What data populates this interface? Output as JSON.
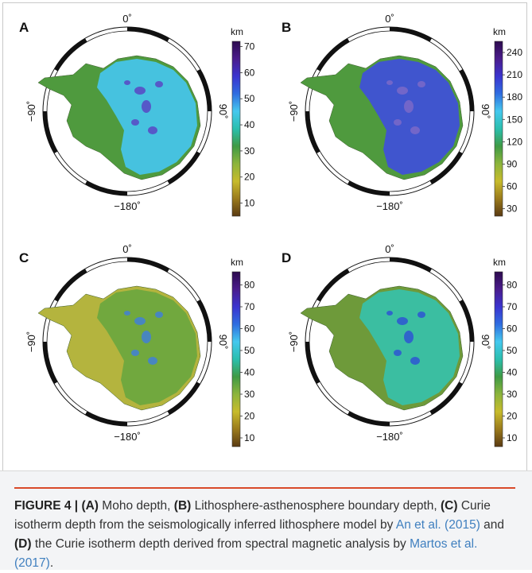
{
  "panels": [
    {
      "letter": "A",
      "unit": "km",
      "scale": {
        "min": 5,
        "max": 72,
        "ticks": [
          "70",
          "60",
          "50",
          "40",
          "30",
          "20",
          "10"
        ],
        "tick_values": [
          70,
          60,
          50,
          40,
          30,
          20,
          10
        ]
      },
      "lon_labels": {
        "top": "0˚",
        "bottom": "−180˚",
        "left": "−90˚",
        "right": "90˚"
      },
      "colors": {
        "west": "#4f9a3e",
        "east": "#46c4e8",
        "hot": "#5a3fc2"
      }
    },
    {
      "letter": "B",
      "unit": "km",
      "scale": {
        "min": 20,
        "max": 255,
        "ticks": [
          "240",
          "210",
          "180",
          "150",
          "120",
          "90",
          "60",
          "30"
        ],
        "tick_values": [
          240,
          210,
          180,
          150,
          120,
          90,
          60,
          30
        ]
      },
      "lon_labels": {
        "top": "0˚",
        "bottom": "−180˚",
        "left": "−90˚",
        "right": "90˚"
      },
      "colors": {
        "west": "#4f9a3e",
        "east": "#3f51d6",
        "hot": "#7e6ac8"
      }
    },
    {
      "letter": "C",
      "unit": "km",
      "scale": {
        "min": 6,
        "max": 86,
        "ticks": [
          "80",
          "70",
          "60",
          "50",
          "40",
          "30",
          "20",
          "10"
        ],
        "tick_values": [
          80,
          70,
          60,
          50,
          40,
          30,
          20,
          10
        ]
      },
      "lon_labels": {
        "top": "0˚",
        "bottom": "−180˚",
        "left": "−90˚",
        "right": "90˚"
      },
      "colors": {
        "west": "#b4b43e",
        "east": "#6ea83e",
        "hot": "#3f7de0"
      }
    },
    {
      "letter": "D",
      "unit": "km",
      "scale": {
        "min": 6,
        "max": 86,
        "ticks": [
          "80",
          "70",
          "60",
          "50",
          "40",
          "30",
          "20",
          "10"
        ],
        "tick_values": [
          80,
          70,
          60,
          50,
          40,
          30,
          20,
          10
        ]
      },
      "lon_labels": {
        "top": "0˚",
        "bottom": "−180˚",
        "left": "−90˚",
        "right": "90˚"
      },
      "colors": {
        "west": "#6e9a3a",
        "east": "#38c0a6",
        "hot": "#2d4fd6"
      }
    }
  ],
  "colormap": [
    "#5a3a12",
    "#9a7a1c",
    "#c7bb2c",
    "#8cb43c",
    "#3f9a45",
    "#2bbfae",
    "#45c8ee",
    "#2f6de0",
    "#3b34cf",
    "#4a1c8c",
    "#2d0b4e"
  ],
  "caption": {
    "label": "FIGURE 4 |",
    "a_ref": "(A)",
    "a_text": " Moho depth, ",
    "b_ref": "(B)",
    "b_text": " Lithosphere-asthenosphere boundary depth, ",
    "c_ref": "(C)",
    "c_text": " Curie isotherm depth from the seismologically inferred lithosphere model by ",
    "cite1": "An et al. (2015)",
    "and_text": " and ",
    "d_ref": "(D)",
    "d_text": " the Curie isotherm depth derived from spectral magnetic analysis by ",
    "cite2": "Martos et al. (2017)",
    "end": "."
  }
}
